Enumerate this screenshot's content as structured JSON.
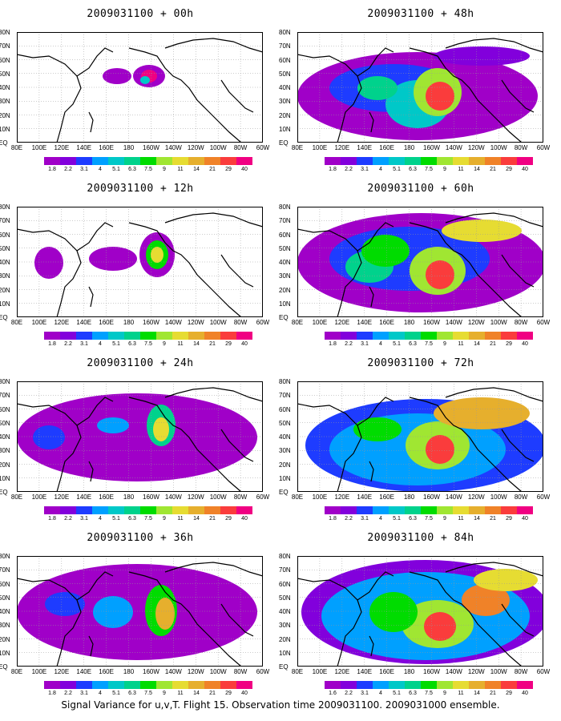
{
  "panels": [
    {
      "title": "2009031100 + 00h"
    },
    {
      "title": "2009031100 + 48h"
    },
    {
      "title": "2009031100 + 12h"
    },
    {
      "title": "2009031100 + 60h"
    },
    {
      "title": "2009031100 + 24h"
    },
    {
      "title": "2009031100 + 72h"
    },
    {
      "title": "2009031100 + 36h"
    },
    {
      "title": "2009031100 + 84h"
    }
  ],
  "lat_labels": [
    "80N",
    "70N",
    "60N",
    "50N",
    "40N",
    "30N",
    "20N",
    "10N",
    "EQ"
  ],
  "lon_labels": [
    "80E",
    "100E",
    "120E",
    "140E",
    "160E",
    "180",
    "160W",
    "140W",
    "120W",
    "100W",
    "80W",
    "60W"
  ],
  "colorbar": {
    "levels": [
      "1.8",
      "2.2",
      "3.1",
      "4",
      "5.1",
      "6.3",
      "7.5",
      "9",
      "11",
      "14",
      "21",
      "29",
      "40"
    ],
    "levels_panel_84h_first": "1.6",
    "colors": [
      "#a000c8",
      "#8200dc",
      "#1e3cff",
      "#00a0ff",
      "#00c8c8",
      "#00d28c",
      "#00dc00",
      "#a0e632",
      "#e6dc32",
      "#e6af2d",
      "#f08228",
      "#fa3c3c",
      "#f00082"
    ]
  },
  "footer": "Signal Variance for u,v,T. Flight 15. Observation time 2009031100. 2009031000 ensemble."
}
